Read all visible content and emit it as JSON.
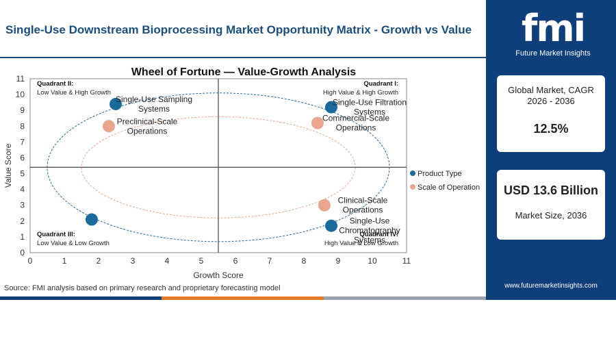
{
  "header": {
    "title": "Single-Use Downstream Bioprocessing Market Opportunity Matrix - Growth vs Value"
  },
  "brand": {
    "logo_text": "fmi",
    "logo_subtitle": "Future Market Insights",
    "url": "www.futuremarketinsights.com"
  },
  "stats": {
    "cagr_label": "Global Market, CAGR 2026 - 2036",
    "cagr_value": "12.5%",
    "size_value": "USD 13.6 Billion",
    "size_label": "Market Size, 2036"
  },
  "footer": {
    "source": "Source: FMI analysis based on primary research and proprietary forecasting model"
  },
  "colors": {
    "navy": "#0e3f7a",
    "title": "#1c4e7c",
    "product": "#1a6a9e",
    "scale": "#e9a58e"
  },
  "chart_data": {
    "type": "scatter",
    "title": "Wheel of Fortune — Value-Growth Analysis",
    "xlabel": "Growth Score",
    "ylabel": "Value Score",
    "xlim": [
      0,
      11
    ],
    "ylim": [
      0,
      11
    ],
    "xticks": [
      0,
      1,
      2,
      3,
      4,
      5,
      6,
      7,
      8,
      9,
      10,
      11
    ],
    "yticks": [
      0,
      1,
      2,
      3,
      4,
      5,
      6,
      7,
      8,
      9,
      10,
      11
    ],
    "divider": {
      "x": 5.5,
      "y": 5.4
    },
    "quadrants": [
      {
        "name": "Quadrant II:",
        "desc": "Low Value & High Growth",
        "pos": "top-left"
      },
      {
        "name": "Quadrant I:",
        "desc": "High Value & High Growth",
        "pos": "top-right"
      },
      {
        "name": "Quadrant III:",
        "desc": "Low Value & Low Growth",
        "pos": "bottom-left"
      },
      {
        "name": "Quadrant IV:",
        "desc": "High Value & Low Growth",
        "pos": "bottom-right"
      }
    ],
    "series": [
      {
        "name": "Product Type",
        "color": "#1a6a9e",
        "points": [
          {
            "x": 2.5,
            "y": 9.4,
            "label": [
              "Single-Use Sampling",
              "Systems"
            ]
          },
          {
            "x": 8.8,
            "y": 9.2,
            "label": [
              "Single-Use Filtration",
              "Systems"
            ]
          },
          {
            "x": 1.8,
            "y": 2.1,
            "label": []
          },
          {
            "x": 8.8,
            "y": 1.7,
            "label": [
              "Single-Use",
              "Chromatography",
              "Systems"
            ]
          }
        ]
      },
      {
        "name": "Scale of Operation",
        "color": "#e9a58e",
        "points": [
          {
            "x": 2.3,
            "y": 8.0,
            "label": [
              "Preclinical-Scale",
              "Operations"
            ]
          },
          {
            "x": 8.4,
            "y": 8.2,
            "label": [
              "Commercial-Scale",
              "Operations"
            ]
          },
          {
            "x": 8.6,
            "y": 3.0,
            "label": [
              "Clinical-Scale",
              "Operations"
            ]
          }
        ]
      }
    ],
    "legend": "right"
  }
}
